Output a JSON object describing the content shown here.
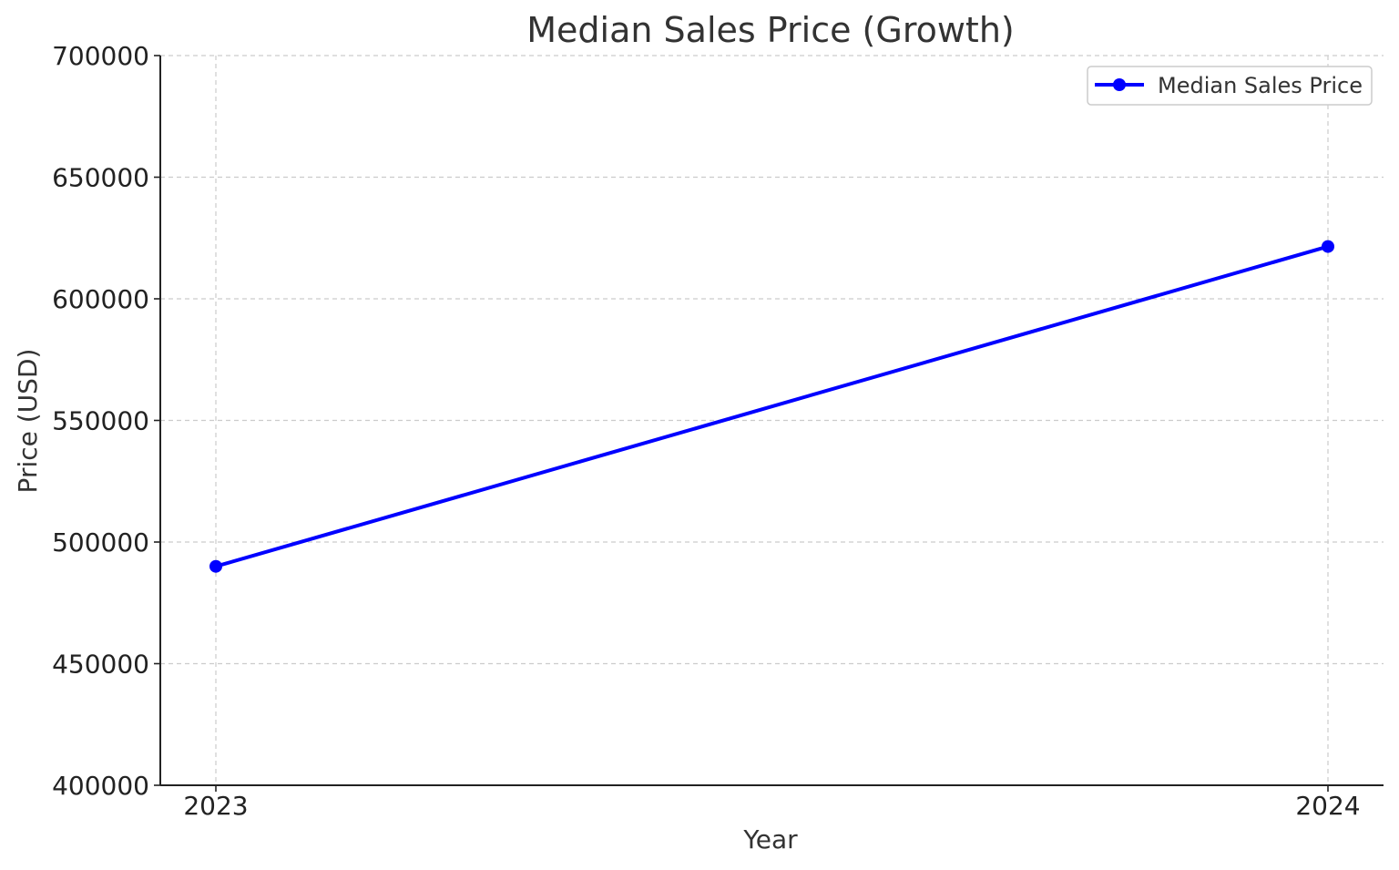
{
  "chart_data": {
    "type": "line",
    "title": "Median Sales Price (Growth)",
    "xlabel": "Year",
    "ylabel": "Price (USD)",
    "x": [
      "2023",
      "2024"
    ],
    "series": [
      {
        "name": "Median Sales Price",
        "values": [
          490000,
          621500
        ],
        "color": "#0000ff",
        "marker": "circle"
      }
    ],
    "yticks": [
      "400000",
      "450000",
      "500000",
      "550000",
      "600000",
      "650000",
      "700000"
    ],
    "ylim": [
      400000,
      700000
    ],
    "grid": true,
    "grid_style": "dashed",
    "legend": "top-right"
  }
}
